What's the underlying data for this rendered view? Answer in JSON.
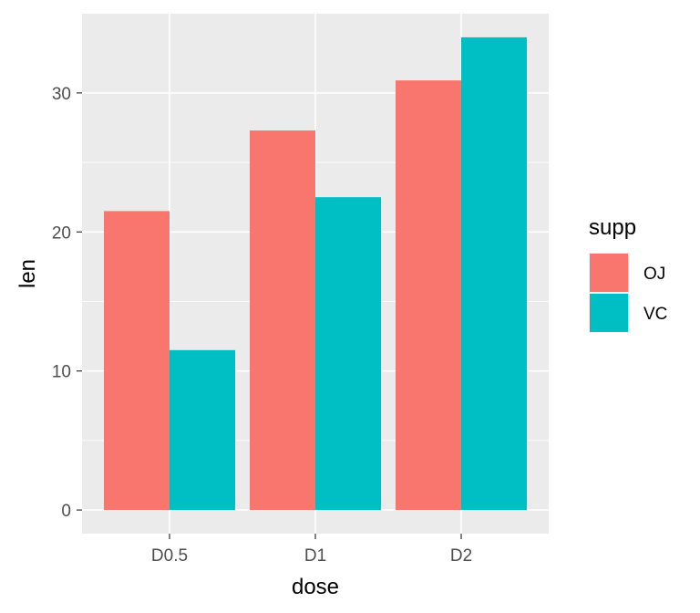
{
  "chart_data": {
    "type": "bar",
    "categories": [
      "D0.5",
      "D1",
      "D2"
    ],
    "series": [
      {
        "name": "OJ",
        "values": [
          21.5,
          27.3,
          30.9
        ],
        "color": "#F8766D"
      },
      {
        "name": "VC",
        "values": [
          11.5,
          22.5,
          34.0
        ],
        "color": "#00BFC4"
      }
    ],
    "xlabel": "dose",
    "ylabel": "len",
    "ylim": [
      -1.7,
      35.7
    ],
    "yticks": [
      0,
      10,
      20,
      30
    ],
    "grid": true,
    "panel_background": "#EBEBEB",
    "legend": {
      "title": "supp",
      "position": "right"
    }
  }
}
